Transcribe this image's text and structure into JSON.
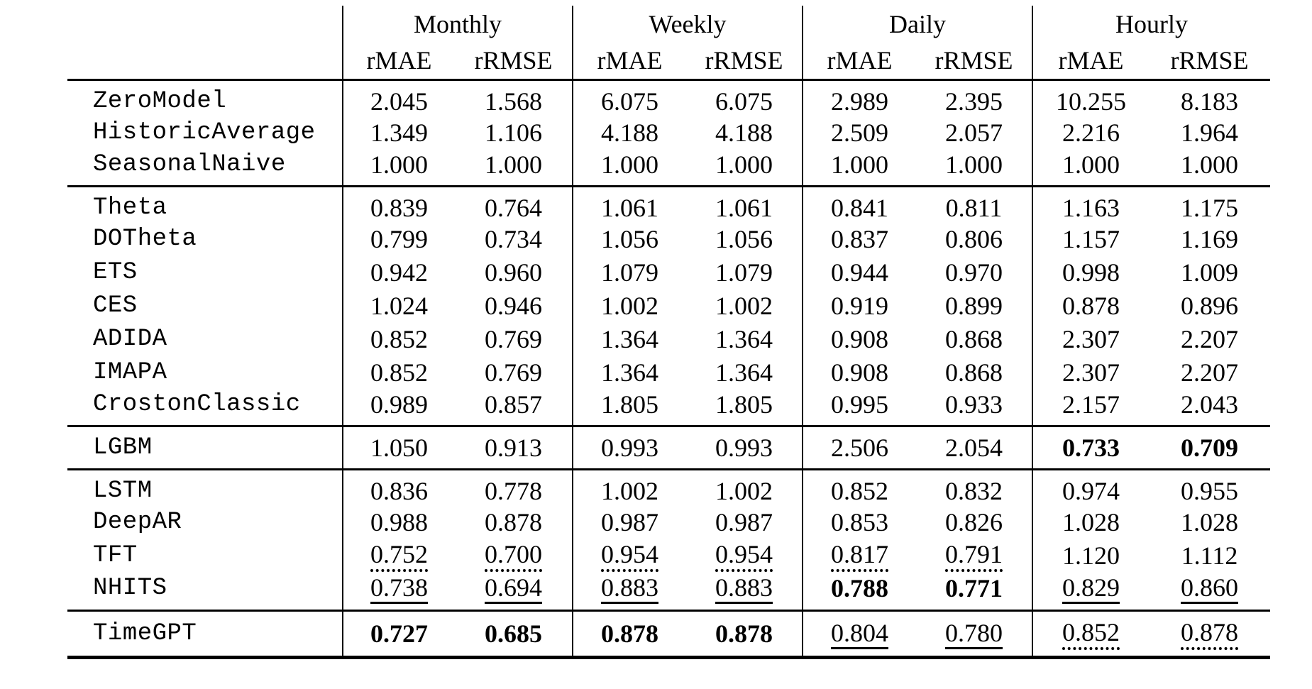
{
  "colors": {
    "background": "#ffffff",
    "text": "#000000",
    "rules": "#000000"
  },
  "table": {
    "groups": [
      "Monthly",
      "Weekly",
      "Daily",
      "Hourly"
    ],
    "metrics": [
      "rMAE",
      "rRMSE"
    ],
    "style_legend": {
      "b": "bold",
      "u": "solid-underline",
      "d": "dotted-underline"
    },
    "sections": [
      {
        "rows": [
          {
            "name": "ZeroModel",
            "cells": [
              {
                "v": "2.045",
                "s": ""
              },
              {
                "v": "1.568",
                "s": ""
              },
              {
                "v": "6.075",
                "s": ""
              },
              {
                "v": "6.075",
                "s": ""
              },
              {
                "v": "2.989",
                "s": ""
              },
              {
                "v": "2.395",
                "s": ""
              },
              {
                "v": "10.255",
                "s": ""
              },
              {
                "v": "8.183",
                "s": ""
              }
            ]
          },
          {
            "name": "HistoricAverage",
            "cells": [
              {
                "v": "1.349",
                "s": ""
              },
              {
                "v": "1.106",
                "s": ""
              },
              {
                "v": "4.188",
                "s": ""
              },
              {
                "v": "4.188",
                "s": ""
              },
              {
                "v": "2.509",
                "s": ""
              },
              {
                "v": "2.057",
                "s": ""
              },
              {
                "v": "2.216",
                "s": ""
              },
              {
                "v": "1.964",
                "s": ""
              }
            ]
          },
          {
            "name": "SeasonalNaive",
            "cells": [
              {
                "v": "1.000",
                "s": ""
              },
              {
                "v": "1.000",
                "s": ""
              },
              {
                "v": "1.000",
                "s": ""
              },
              {
                "v": "1.000",
                "s": ""
              },
              {
                "v": "1.000",
                "s": ""
              },
              {
                "v": "1.000",
                "s": ""
              },
              {
                "v": "1.000",
                "s": ""
              },
              {
                "v": "1.000",
                "s": ""
              }
            ]
          }
        ]
      },
      {
        "rows": [
          {
            "name": "Theta",
            "cells": [
              {
                "v": "0.839",
                "s": ""
              },
              {
                "v": "0.764",
                "s": ""
              },
              {
                "v": "1.061",
                "s": ""
              },
              {
                "v": "1.061",
                "s": ""
              },
              {
                "v": "0.841",
                "s": ""
              },
              {
                "v": "0.811",
                "s": ""
              },
              {
                "v": "1.163",
                "s": ""
              },
              {
                "v": "1.175",
                "s": ""
              }
            ]
          },
          {
            "name": "DOTheta",
            "cells": [
              {
                "v": "0.799",
                "s": ""
              },
              {
                "v": "0.734",
                "s": ""
              },
              {
                "v": "1.056",
                "s": ""
              },
              {
                "v": "1.056",
                "s": ""
              },
              {
                "v": "0.837",
                "s": ""
              },
              {
                "v": "0.806",
                "s": ""
              },
              {
                "v": "1.157",
                "s": ""
              },
              {
                "v": "1.169",
                "s": ""
              }
            ]
          },
          {
            "name": "ETS",
            "cells": [
              {
                "v": "0.942",
                "s": ""
              },
              {
                "v": "0.960",
                "s": ""
              },
              {
                "v": "1.079",
                "s": ""
              },
              {
                "v": "1.079",
                "s": ""
              },
              {
                "v": "0.944",
                "s": ""
              },
              {
                "v": "0.970",
                "s": ""
              },
              {
                "v": "0.998",
                "s": ""
              },
              {
                "v": "1.009",
                "s": ""
              }
            ]
          },
          {
            "name": "CES",
            "cells": [
              {
                "v": "1.024",
                "s": ""
              },
              {
                "v": "0.946",
                "s": ""
              },
              {
                "v": "1.002",
                "s": ""
              },
              {
                "v": "1.002",
                "s": ""
              },
              {
                "v": "0.919",
                "s": ""
              },
              {
                "v": "0.899",
                "s": ""
              },
              {
                "v": "0.878",
                "s": ""
              },
              {
                "v": "0.896",
                "s": ""
              }
            ]
          },
          {
            "name": "ADIDA",
            "cells": [
              {
                "v": "0.852",
                "s": ""
              },
              {
                "v": "0.769",
                "s": ""
              },
              {
                "v": "1.364",
                "s": ""
              },
              {
                "v": "1.364",
                "s": ""
              },
              {
                "v": "0.908",
                "s": ""
              },
              {
                "v": "0.868",
                "s": ""
              },
              {
                "v": "2.307",
                "s": ""
              },
              {
                "v": "2.207",
                "s": ""
              }
            ]
          },
          {
            "name": "IMAPA",
            "cells": [
              {
                "v": "0.852",
                "s": ""
              },
              {
                "v": "0.769",
                "s": ""
              },
              {
                "v": "1.364",
                "s": ""
              },
              {
                "v": "1.364",
                "s": ""
              },
              {
                "v": "0.908",
                "s": ""
              },
              {
                "v": "0.868",
                "s": ""
              },
              {
                "v": "2.307",
                "s": ""
              },
              {
                "v": "2.207",
                "s": ""
              }
            ]
          },
          {
            "name": "CrostonClassic",
            "cells": [
              {
                "v": "0.989",
                "s": ""
              },
              {
                "v": "0.857",
                "s": ""
              },
              {
                "v": "1.805",
                "s": ""
              },
              {
                "v": "1.805",
                "s": ""
              },
              {
                "v": "0.995",
                "s": ""
              },
              {
                "v": "0.933",
                "s": ""
              },
              {
                "v": "2.157",
                "s": ""
              },
              {
                "v": "2.043",
                "s": ""
              }
            ]
          }
        ]
      },
      {
        "rows": [
          {
            "name": "LGBM",
            "cells": [
              {
                "v": "1.050",
                "s": ""
              },
              {
                "v": "0.913",
                "s": ""
              },
              {
                "v": "0.993",
                "s": ""
              },
              {
                "v": "0.993",
                "s": ""
              },
              {
                "v": "2.506",
                "s": ""
              },
              {
                "v": "2.054",
                "s": ""
              },
              {
                "v": "0.733",
                "s": "b"
              },
              {
                "v": "0.709",
                "s": "b"
              }
            ]
          }
        ]
      },
      {
        "rows": [
          {
            "name": "LSTM",
            "cells": [
              {
                "v": "0.836",
                "s": ""
              },
              {
                "v": "0.778",
                "s": ""
              },
              {
                "v": "1.002",
                "s": ""
              },
              {
                "v": "1.002",
                "s": ""
              },
              {
                "v": "0.852",
                "s": ""
              },
              {
                "v": "0.832",
                "s": ""
              },
              {
                "v": "0.974",
                "s": ""
              },
              {
                "v": "0.955",
                "s": ""
              }
            ]
          },
          {
            "name": "DeepAR",
            "cells": [
              {
                "v": "0.988",
                "s": ""
              },
              {
                "v": "0.878",
                "s": ""
              },
              {
                "v": "0.987",
                "s": ""
              },
              {
                "v": "0.987",
                "s": ""
              },
              {
                "v": "0.853",
                "s": ""
              },
              {
                "v": "0.826",
                "s": ""
              },
              {
                "v": "1.028",
                "s": ""
              },
              {
                "v": "1.028",
                "s": ""
              }
            ]
          },
          {
            "name": "TFT",
            "cells": [
              {
                "v": "0.752",
                "s": "d"
              },
              {
                "v": "0.700",
                "s": "d"
              },
              {
                "v": "0.954",
                "s": "d"
              },
              {
                "v": "0.954",
                "s": "d"
              },
              {
                "v": "0.817",
                "s": "d"
              },
              {
                "v": "0.791",
                "s": "d"
              },
              {
                "v": "1.120",
                "s": ""
              },
              {
                "v": "1.112",
                "s": ""
              }
            ]
          },
          {
            "name": "NHITS",
            "cells": [
              {
                "v": "0.738",
                "s": "u"
              },
              {
                "v": "0.694",
                "s": "u"
              },
              {
                "v": "0.883",
                "s": "u"
              },
              {
                "v": "0.883",
                "s": "u"
              },
              {
                "v": "0.788",
                "s": "b"
              },
              {
                "v": "0.771",
                "s": "b"
              },
              {
                "v": "0.829",
                "s": "u"
              },
              {
                "v": "0.860",
                "s": "u"
              }
            ]
          }
        ]
      },
      {
        "rows": [
          {
            "name": "TimeGPT",
            "cells": [
              {
                "v": "0.727",
                "s": "b"
              },
              {
                "v": "0.685",
                "s": "b"
              },
              {
                "v": "0.878",
                "s": "b"
              },
              {
                "v": "0.878",
                "s": "b"
              },
              {
                "v": "0.804",
                "s": "u"
              },
              {
                "v": "0.780",
                "s": "u"
              },
              {
                "v": "0.852",
                "s": "d"
              },
              {
                "v": "0.878",
                "s": "d"
              }
            ]
          }
        ]
      }
    ]
  }
}
